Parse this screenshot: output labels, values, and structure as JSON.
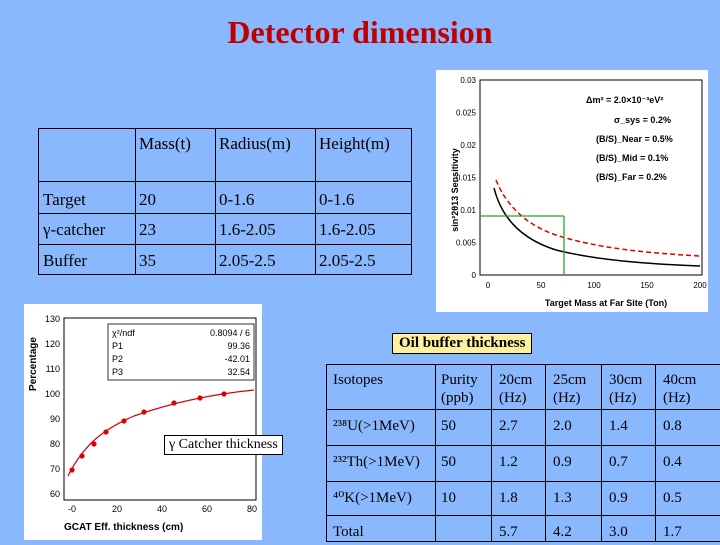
{
  "title": "Detector dimension",
  "main_table": {
    "header": [
      "Mass(t)",
      "Radius(m)",
      "Height(m)"
    ],
    "rows": [
      {
        "label": "Target",
        "mass": "20",
        "radius": "0-1.6",
        "height": "0-1.6"
      },
      {
        "label": "γ-catcher",
        "mass": "23",
        "radius": "1.6-2.05",
        "height": "1.6-2.05"
      },
      {
        "label": "Buffer",
        "mass": "35",
        "radius": "2.05-2.5",
        "height": "2.05-2.5"
      }
    ]
  },
  "sensitivity_plot": {
    "ylabel": "sin²2θ13 Sensitivity",
    "xlabel": "Target Mass at Far Site (Ton)",
    "yticks": [
      "0",
      "0.005",
      "0.01",
      "0.015",
      "0.02",
      "0.025",
      "0.03"
    ],
    "xticks": [
      "0",
      "50",
      "100",
      "150",
      "200"
    ],
    "legend": [
      "Δm² = 2.0×10⁻³eV²",
      "σ_sys = 0.2%",
      "(B/S)_Near = 0.5%",
      "(B/S)_Mid = 0.1%",
      "(B/S)_Far = 0.2%"
    ]
  },
  "gcat_plot": {
    "ylabel": "Percentage",
    "xlabel": "GCAT Eff.   thickness (cm)",
    "yticks": [
      "60",
      "70",
      "80",
      "90",
      "100",
      "110",
      "120",
      "130"
    ],
    "xticks": [
      "-0",
      "20",
      "40",
      "60",
      "80"
    ],
    "stats": [
      {
        "name": "χ²/ndf",
        "value": "0.8094 /   6"
      },
      {
        "name": "P1",
        "value": "99.36"
      },
      {
        "name": "P2",
        "value": "-42.01"
      },
      {
        "name": "P3",
        "value": "32.54"
      }
    ]
  },
  "callouts": {
    "catcher": "γ Catcher thickness",
    "oil": "Oil buffer thickness"
  },
  "iso_table": {
    "headers": [
      "Isotopes",
      "Purity (ppb)",
      "20cm (Hz)",
      "25cm (Hz)",
      "30cm (Hz)",
      "40cm (Hz)"
    ],
    "rows": [
      {
        "iso": "²³⁸U(>1MeV)",
        "purity": "50",
        "v": [
          "2.7",
          "2.0",
          "1.4",
          "0.8"
        ]
      },
      {
        "iso": "²³²Th(>1MeV)",
        "purity": "50",
        "v": [
          "1.2",
          "0.9",
          "0.7",
          "0.4"
        ]
      },
      {
        "iso": "⁴⁰K(>1MeV)",
        "purity": "10",
        "v": [
          "1.8",
          "1.3",
          "0.9",
          "0.5"
        ]
      },
      {
        "iso": "Total",
        "purity": "",
        "v": [
          "5.7",
          "4.2",
          "3.0",
          "1.7"
        ]
      }
    ]
  }
}
